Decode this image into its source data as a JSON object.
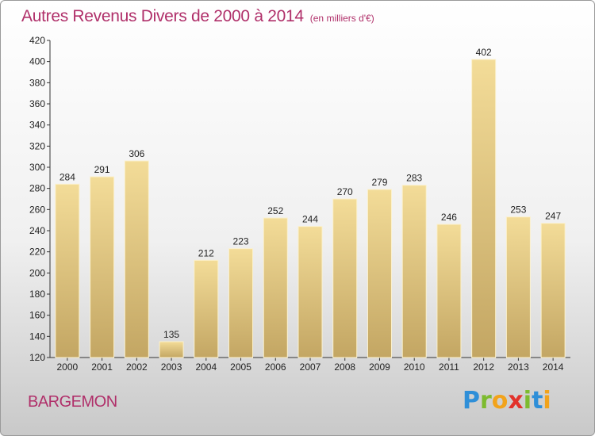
{
  "chart_data": {
    "type": "bar",
    "title": "Autres Revenus Divers de 2000 à 2014",
    "unit_label": "(en milliers d'€)",
    "categories": [
      "2000",
      "2001",
      "2002",
      "2003",
      "2004",
      "2005",
      "2006",
      "2007",
      "2008",
      "2009",
      "2010",
      "2011",
      "2012",
      "2013",
      "2014"
    ],
    "values": [
      284,
      291,
      306,
      135,
      212,
      223,
      252,
      244,
      270,
      279,
      283,
      246,
      402,
      253,
      247
    ],
    "ylim": [
      120,
      420
    ],
    "yticks": [
      120,
      140,
      160,
      180,
      200,
      220,
      240,
      260,
      280,
      300,
      320,
      340,
      360,
      380,
      400,
      420
    ],
    "grid": false,
    "xlabel": "",
    "ylabel": ""
  },
  "footer": {
    "place_name": "BARGEMON",
    "brand_letters": [
      {
        "ch": "P",
        "color": "#2f8fd8"
      },
      {
        "ch": "r",
        "color": "#7dbb2f"
      },
      {
        "ch": "o",
        "color": "#f2a31b"
      },
      {
        "ch": "x",
        "color": "#e2322b"
      },
      {
        "ch": "i",
        "color": "#7dbb2f"
      },
      {
        "ch": "t",
        "color": "#2f8fd8"
      },
      {
        "ch": "i",
        "color": "#f2a31b"
      }
    ]
  },
  "colors": {
    "title": "#b0306a",
    "bar_light": "#f3dc98",
    "bar_dark": "#c3a663"
  }
}
